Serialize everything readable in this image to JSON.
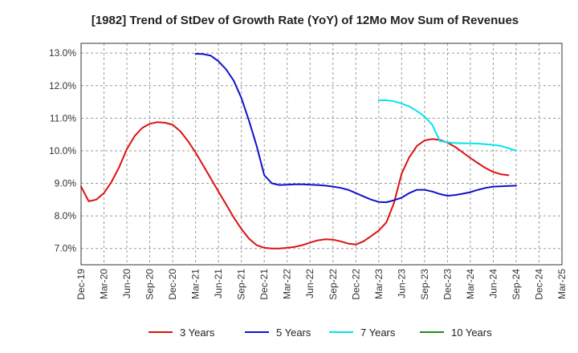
{
  "chart_data": {
    "type": "line",
    "title": "[1982]  Trend of StDev of Growth Rate (YoY) of 12Mo Mov Sum of Revenues",
    "xlabel": "",
    "ylabel": "",
    "ylim": [
      6.5,
      13.3
    ],
    "yticks": [
      7.0,
      8.0,
      9.0,
      10.0,
      11.0,
      12.0,
      13.0
    ],
    "ytick_labels": [
      "7.0%",
      "8.0%",
      "9.0%",
      "10.0%",
      "11.0%",
      "12.0%",
      "13.0%"
    ],
    "x_start": "Dec-19",
    "x_count_months": 63,
    "xtick_labels": [
      "Dec-19",
      "Mar-20",
      "Jun-20",
      "Sep-20",
      "Dec-20",
      "Mar-21",
      "Jun-21",
      "Sep-21",
      "Dec-21",
      "Mar-22",
      "Jun-22",
      "Sep-22",
      "Dec-22",
      "Mar-23",
      "Jun-23",
      "Sep-23",
      "Dec-23",
      "Mar-24",
      "Jun-24",
      "Sep-24",
      "Dec-24",
      "Mar-25"
    ],
    "grid": true,
    "legend_position": "bottom",
    "series": [
      {
        "name": "3 Years",
        "color": "#dd1111",
        "start_index": 0,
        "values": [
          8.9,
          8.45,
          8.5,
          8.7,
          9.05,
          9.5,
          10.05,
          10.45,
          10.7,
          10.83,
          10.88,
          10.86,
          10.8,
          10.6,
          10.3,
          9.95,
          9.55,
          9.15,
          8.75,
          8.35,
          7.95,
          7.6,
          7.3,
          7.1,
          7.02,
          7.0,
          7.0,
          7.02,
          7.05,
          7.1,
          7.18,
          7.25,
          7.28,
          7.27,
          7.22,
          7.15,
          7.12,
          7.22,
          7.38,
          7.55,
          7.8,
          8.4,
          9.3,
          9.8,
          10.15,
          10.32,
          10.36,
          10.33,
          10.25,
          10.12,
          9.95,
          9.78,
          9.62,
          9.47,
          9.35,
          9.28,
          9.25
        ]
      },
      {
        "name": "5 Years",
        "color": "#1111cc",
        "start_index": 15,
        "values": [
          12.98,
          12.97,
          12.92,
          12.75,
          12.5,
          12.15,
          11.62,
          10.92,
          10.15,
          9.25,
          9.0,
          8.95,
          8.96,
          8.97,
          8.97,
          8.96,
          8.95,
          8.93,
          8.9,
          8.86,
          8.8,
          8.7,
          8.6,
          8.5,
          8.43,
          8.42,
          8.48,
          8.56,
          8.7,
          8.8,
          8.8,
          8.75,
          8.67,
          8.62,
          8.64,
          8.68,
          8.73,
          8.8,
          8.86,
          8.9,
          8.91,
          8.92,
          8.93
        ]
      },
      {
        "name": "7 Years",
        "color": "#00e5ee",
        "start_index": 39,
        "values": [
          11.55,
          11.55,
          11.52,
          11.45,
          11.36,
          11.22,
          11.05,
          10.8,
          10.3,
          10.26,
          10.24,
          10.23,
          10.23,
          10.22,
          10.2,
          10.18,
          10.15,
          10.08,
          10.0
        ]
      },
      {
        "name": "10 Years",
        "color": "#228822",
        "start_index": 0,
        "values": []
      }
    ]
  }
}
